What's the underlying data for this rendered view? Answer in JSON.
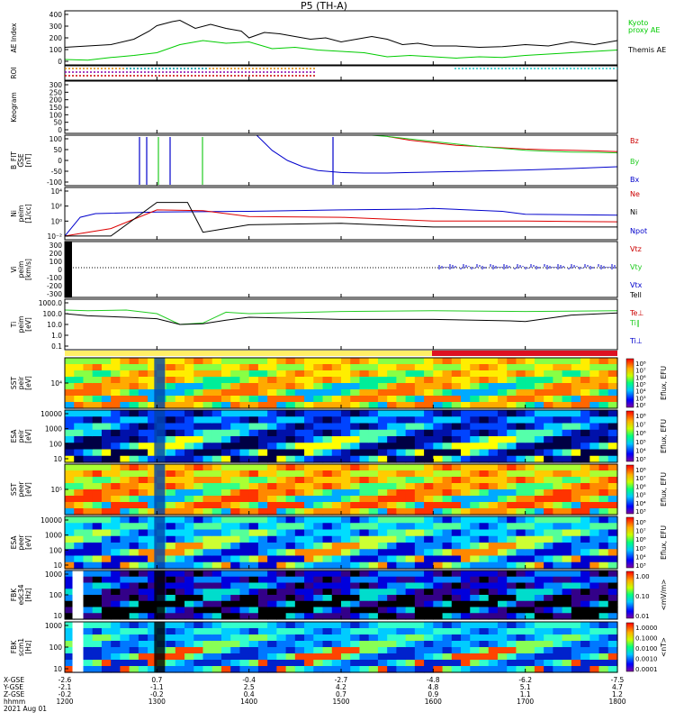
{
  "title": "P5 (TH-A)",
  "colors": {
    "kyoto": "#00cc00",
    "themis": "#000000",
    "red": "#dd0000",
    "green": "#22cc22",
    "blue": "#0000cc",
    "black": "#000000"
  },
  "chart_data": [
    {
      "type": "line",
      "id": "ae",
      "ylabel": "AE Index",
      "ylim": [
        0,
        400
      ],
      "yticks": [
        "400",
        "300",
        "200",
        "100",
        "0"
      ],
      "legend": [
        "Kyoto",
        "proxy AE",
        "Themis AE"
      ],
      "series": [
        {
          "name": "Themis AE",
          "color": "#000000",
          "x": [
            1200,
            1215,
            1230,
            1245,
            1255,
            1300,
            1310,
            1315,
            1325,
            1335,
            1345,
            1355,
            1400,
            1410,
            1420,
            1430,
            1440,
            1450,
            1500,
            1510,
            1520,
            1530,
            1540,
            1550,
            1600,
            1615,
            1630,
            1645,
            1700,
            1715,
            1730,
            1745,
            1800
          ],
          "values": [
            130,
            140,
            150,
            190,
            250,
            290,
            320,
            330,
            270,
            300,
            270,
            250,
            200,
            240,
            230,
            210,
            190,
            200,
            170,
            190,
            210,
            190,
            150,
            160,
            140,
            140,
            130,
            135,
            150,
            140,
            170,
            150,
            180
          ]
        },
        {
          "name": "Kyoto proxy AE",
          "color": "#00cc00",
          "x": [
            1200,
            1215,
            1230,
            1245,
            1300,
            1315,
            1330,
            1345,
            1400,
            1415,
            1430,
            1445,
            1500,
            1515,
            1530,
            1545,
            1600,
            1615,
            1630,
            1645,
            1700,
            1715,
            1730,
            1745,
            1800
          ],
          "values": [
            40,
            35,
            55,
            70,
            90,
            150,
            180,
            160,
            170,
            120,
            130,
            110,
            100,
            90,
            60,
            70,
            60,
            50,
            60,
            55,
            70,
            80,
            90,
            100,
            110
          ]
        }
      ]
    },
    {
      "type": "table",
      "id": "roi",
      "ylabel": "ROI"
    },
    {
      "type": "heatmap",
      "id": "keogram",
      "ylabel": "Keogram",
      "yticks": [
        "300",
        "250",
        "200",
        "150",
        "100",
        "50",
        "0"
      ]
    },
    {
      "type": "line",
      "id": "bfit",
      "ylabel": "B_FIT",
      "ylabel2": "GSE",
      "ylabel3": "[nT]",
      "ylim": [
        -100,
        100
      ],
      "yticks": [
        "100",
        "50",
        "0",
        "-50",
        "-100"
      ],
      "legend": [
        "Bz",
        "By",
        "Bx"
      ],
      "series": [
        {
          "name": "Bz",
          "color": "#dd0000",
          "x": [
            1530,
            1545,
            1600,
            1615,
            1630,
            1645,
            1700,
            1715,
            1730,
            1745,
            1800
          ],
          "values": [
            95,
            80,
            70,
            60,
            55,
            50,
            45,
            42,
            40,
            38,
            35
          ]
        },
        {
          "name": "By",
          "color": "#22cc22",
          "x": [
            1520,
            1530,
            1545,
            1600,
            1615,
            1630,
            1645,
            1700,
            1715,
            1730,
            1745,
            1800
          ],
          "values": [
            100,
            95,
            85,
            75,
            65,
            55,
            48,
            40,
            36,
            33,
            32,
            30
          ]
        },
        {
          "name": "Bx",
          "color": "#0000cc",
          "x": [
            1405,
            1415,
            1425,
            1435,
            1445,
            1500,
            1515,
            1530,
            1545,
            1600,
            1630,
            1700,
            1730,
            1800
          ],
          "values": [
            100,
            40,
            0,
            -25,
            -40,
            -48,
            -50,
            -50,
            -48,
            -46,
            -42,
            -38,
            -32,
            -25
          ]
        }
      ]
    },
    {
      "type": "line",
      "id": "ni",
      "ylabel": "Ni",
      "ylabel2": "peim",
      "ylabel3": "[1/cc]",
      "yticks": [
        "10⁴",
        "10²",
        "10⁰",
        "10⁻²"
      ],
      "legend": [
        "Ne",
        "Ni",
        "Npot"
      ],
      "series": [
        {
          "name": "Npot",
          "color": "#0000cc",
          "x": [
            1200,
            1210,
            1220,
            1300,
            1400,
            1500,
            1550,
            1600,
            1645,
            1700,
            1800
          ],
          "values": [
            -2,
            0.5,
            1,
            1.2,
            1.3,
            1.5,
            1.6,
            1.7,
            1.3,
            0.9,
            0.8
          ]
        },
        {
          "name": "Ne",
          "color": "#dd0000",
          "x": [
            1200,
            1230,
            1300,
            1330,
            1400,
            1500,
            1600,
            1700,
            1800
          ],
          "values": [
            -2,
            -1,
            1.5,
            1.4,
            0.6,
            0.5,
            0,
            0,
            -0.1
          ]
        },
        {
          "name": "Ni",
          "color": "#000000",
          "x": [
            1200,
            1230,
            1300,
            1320,
            1330,
            1400,
            1500,
            1600,
            1700,
            1800
          ],
          "values": [
            -2,
            -2,
            2.5,
            2.5,
            -1.5,
            -0.5,
            -0.3,
            -0.8,
            -0.8,
            -0.8
          ]
        }
      ]
    },
    {
      "type": "line",
      "id": "vi",
      "ylabel": "Vi",
      "ylabel2": "peim",
      "ylabel3": "[km/s]",
      "ylim": [
        -300,
        300
      ],
      "yticks": [
        "300",
        "200",
        "100",
        "0",
        "-100",
        "-200",
        "-300"
      ],
      "legend": [
        "Vtz",
        "Vty",
        "Vtx"
      ]
    },
    {
      "type": "line",
      "id": "ti",
      "ylabel": "Ti",
      "ylabel2": "peim",
      "ylabel3": "[eV]",
      "yticks": [
        "1000.0",
        "100.0",
        "10.0",
        "1.0",
        "0.1"
      ],
      "legend": [
        "Tell",
        "Te⊥",
        "Ti∥",
        "Ti⊥"
      ],
      "series": [
        {
          "name": "Ti∥",
          "color": "#22cc22",
          "x": [
            1200,
            1215,
            1240,
            1300,
            1315,
            1330,
            1345,
            1400,
            1500,
            1600,
            1700,
            1800
          ],
          "values": [
            3,
            2.9,
            3.0,
            2.5,
            1,
            1.2,
            2.7,
            2.5,
            2.8,
            2.9,
            2.8,
            2.9
          ]
        },
        {
          "name": "Tell",
          "color": "#000000",
          "x": [
            1200,
            1215,
            1240,
            1300,
            1315,
            1330,
            1345,
            1400,
            1500,
            1600,
            1650,
            1700,
            1730,
            1800
          ],
          "values": [
            2.5,
            2.2,
            2.0,
            1.8,
            1,
            1.1,
            1.6,
            2.0,
            1.7,
            1.7,
            1.5,
            1.4,
            2.3,
            2.6
          ]
        }
      ]
    },
    {
      "type": "heatmap",
      "id": "sst1",
      "ylabel": "SST",
      "ylabel2": "peir",
      "ylabel3": "[eV]",
      "yticks": [
        "10⁴"
      ],
      "cbar": [
        "10⁸",
        "10⁷",
        "10⁶",
        "10⁵",
        "10⁴",
        "10³",
        "10²"
      ],
      "cbar_label": "Eflux, EFU"
    },
    {
      "type": "heatmap",
      "id": "esa1",
      "ylabel": "ESA",
      "ylabel2": "peir",
      "ylabel3": "[eV]",
      "yticks": [
        "10000",
        "1000",
        "100",
        "10"
      ],
      "cbar": [
        "10⁸",
        "10⁷",
        "10⁶",
        "10⁵",
        "10⁴",
        "10³"
      ],
      "cbar_label": "Eflux, EFU"
    },
    {
      "type": "heatmap",
      "id": "sst2",
      "ylabel": "SST",
      "ylabel2": "peer",
      "ylabel3": "[eV]",
      "yticks": [
        "10⁵"
      ],
      "cbar": [
        "10⁸",
        "10⁷",
        "10⁶",
        "10⁵",
        "10⁴",
        "10³"
      ],
      "cbar_label": "Eflux, EFU"
    },
    {
      "type": "heatmap",
      "id": "esa2",
      "ylabel": "ESA",
      "ylabel2": "peer",
      "ylabel3": "[eV]",
      "yticks": [
        "10000",
        "1000",
        "100",
        "10"
      ],
      "cbar": [
        "10⁸",
        "10⁷",
        "10⁶",
        "10⁵",
        "10⁴",
        "10³"
      ],
      "cbar_label": "Eflux, EFU"
    },
    {
      "type": "heatmap",
      "id": "fbk1",
      "ylabel": "FBK",
      "ylabel2": "edc34",
      "ylabel3": "[Hz]",
      "yticks": [
        "1000",
        "100",
        "10"
      ],
      "cbar": [
        "1.00",
        "0.10",
        "0.01"
      ],
      "cbar_label": "<mV/m>"
    },
    {
      "type": "heatmap",
      "id": "fbk2",
      "ylabel": "FBK",
      "ylabel2": "scm1",
      "ylabel3": "[Hz]",
      "yticks": [
        "1000",
        "100",
        "10"
      ],
      "cbar": [
        "1.0000",
        "0.1000",
        "0.0100",
        "0.0010",
        "0.0001"
      ],
      "cbar_label": "<nT>"
    }
  ],
  "axis": {
    "row_labels": [
      "X-GSE",
      "Y-GSE",
      "Z-GSE",
      "hhmm",
      "2021 Aug 01"
    ],
    "ticks": [
      {
        "x": [
          "-2.6",
          "-2.1",
          "-0.2",
          "1200"
        ]
      },
      {
        "x": [
          "0.7",
          "-1.1",
          "-0.2",
          "1300"
        ]
      },
      {
        "x": [
          "-0.4",
          "2.5",
          "0.4",
          "1400"
        ]
      },
      {
        "x": [
          "-2.7",
          "4.2",
          "0.7",
          "1500"
        ]
      },
      {
        "x": [
          "-4.8",
          "4.8",
          "0.9",
          "1600"
        ]
      },
      {
        "x": [
          "-6.2",
          "5.1",
          "1.1",
          "1700"
        ]
      },
      {
        "x": [
          "-7.5",
          "4.7",
          "1.2",
          "1800"
        ]
      }
    ]
  }
}
